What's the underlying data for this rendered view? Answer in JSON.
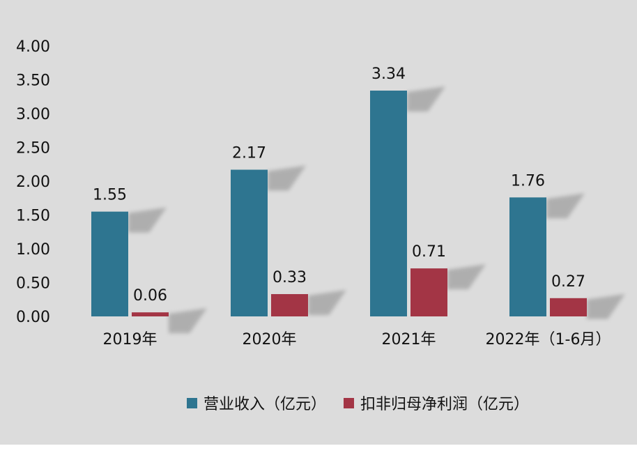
{
  "chart_data": {
    "type": "bar",
    "title": "",
    "xlabel": "",
    "ylabel": "",
    "categories": [
      "2019年",
      "2020年",
      "2021年",
      "2022年（1-6月）"
    ],
    "series": [
      {
        "name": "营业收入（亿元）",
        "color": "#2e7590",
        "values": [
          1.55,
          2.17,
          3.34,
          1.76
        ],
        "labels": [
          "1.55",
          "2.17",
          "3.34",
          "1.76"
        ]
      },
      {
        "name": "扣非归母净利润（亿元）",
        "color": "#a33545",
        "values": [
          0.06,
          0.33,
          0.71,
          0.27
        ],
        "labels": [
          "0.06",
          "0.33",
          "0.71",
          "0.27"
        ]
      }
    ],
    "ylim": [
      0,
      4
    ],
    "yticks": [
      "0.00",
      "0.50",
      "1.00",
      "1.50",
      "2.00",
      "2.50",
      "3.00",
      "3.50",
      "4.00"
    ],
    "grid": false,
    "legend_position": "bottom"
  }
}
